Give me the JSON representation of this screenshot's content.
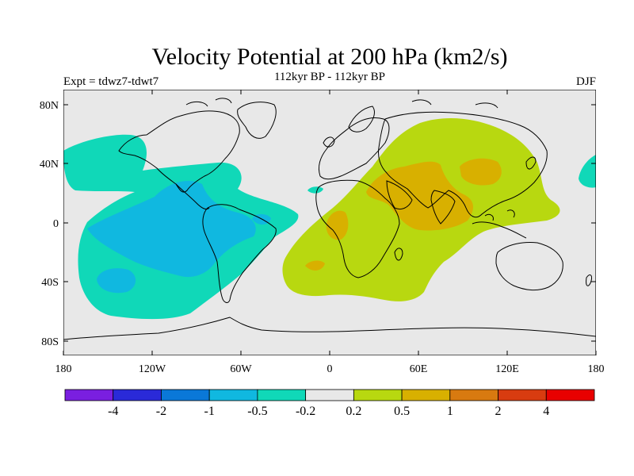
{
  "title": "Velocity Potential at 200 hPa (km2/s)",
  "left_label": "Expt = tdwz7-tdwt7",
  "center_label": "112kyr BP - 112kyr BP",
  "right_label": "DJF",
  "y_ticks": [
    "80N",
    "40N",
    "0",
    "40S",
    "80S"
  ],
  "x_ticks": [
    "180",
    "120W",
    "60W",
    "0",
    "60E",
    "120E",
    "180"
  ],
  "colorbar": {
    "labels": [
      "-4",
      "-2",
      "-1",
      "-0.5",
      "-0.2",
      "0.2",
      "0.5",
      "1",
      "2",
      "4"
    ],
    "colors": [
      "#7a1fe0",
      "#2a2ad8",
      "#0a78d8",
      "#10b8e0",
      "#10d8b8",
      "#e8e8e8",
      "#b8d810",
      "#d8b000",
      "#d87a10",
      "#d83c10",
      "#e80000"
    ]
  },
  "colors": {
    "neutral": "#e8e8e8",
    "neg_weak": "#10d8b8",
    "neg_mid": "#10b8e0",
    "pos_weak": "#b8d810",
    "pos_mid": "#d8b000"
  }
}
